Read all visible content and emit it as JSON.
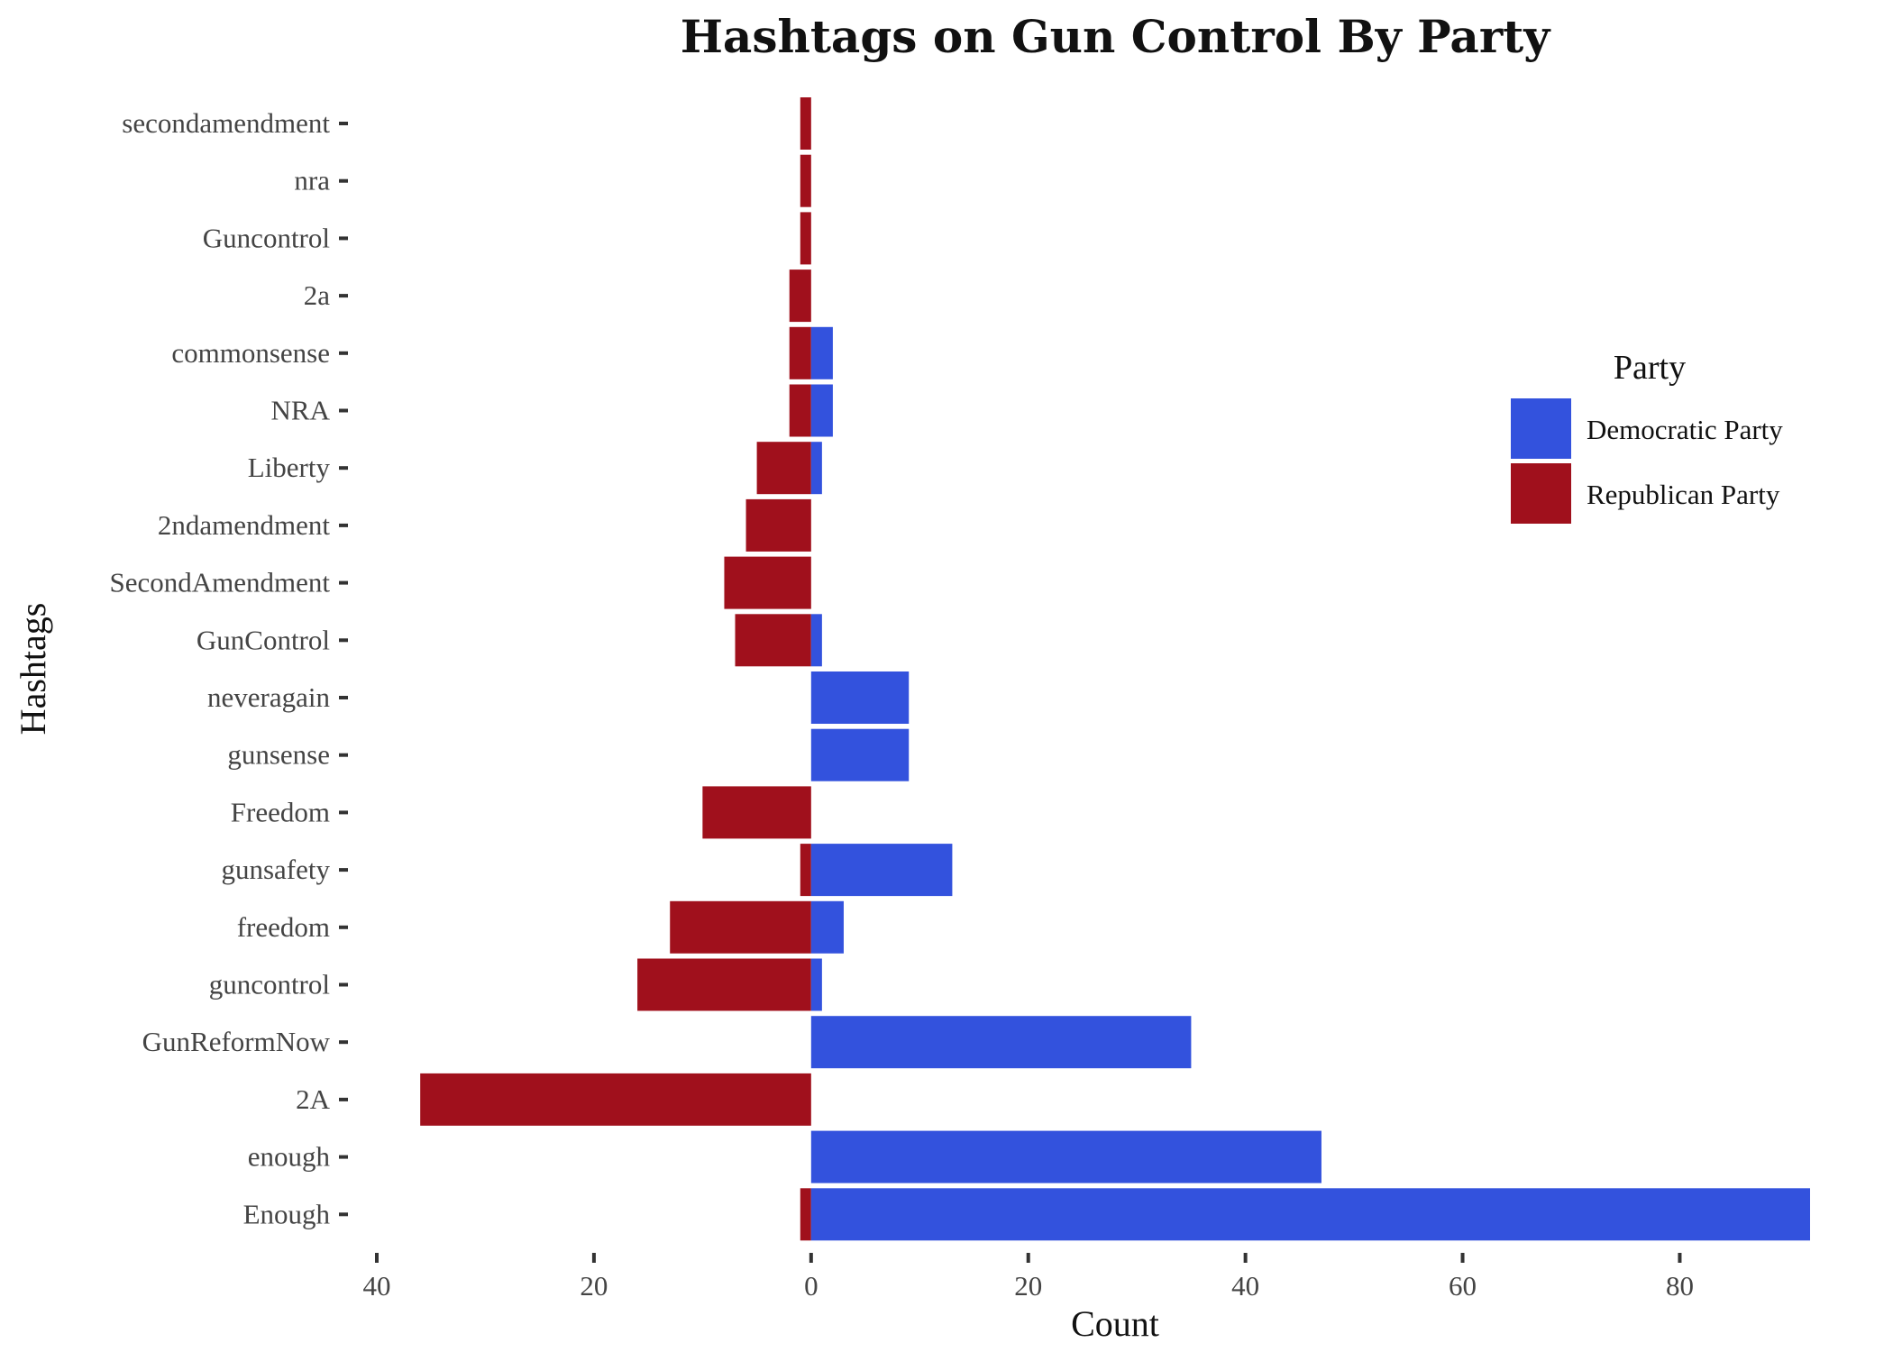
{
  "chart_data": {
    "type": "bar",
    "orientation": "horizontal",
    "title": "Hashtags on Gun Control By Party",
    "xlabel": "Count",
    "ylabel": "Hashtags",
    "xlim": [
      -40,
      92
    ],
    "x_ticks": [
      -40,
      -20,
      0,
      20,
      40,
      60,
      80
    ],
    "x_tick_labels": [
      "40",
      "20",
      "0",
      "20",
      "40",
      "60",
      "80"
    ],
    "grid": false,
    "legend": {
      "title": "Party",
      "position": "right"
    },
    "categories": [
      "secondamendment",
      "nra",
      "Guncontrol",
      "2a",
      "commonsense",
      "NRA",
      "Liberty",
      "2ndamendment",
      "SecondAmendment",
      "GunControl",
      "neveragain",
      "gunsense",
      "Freedom",
      "gunsafety",
      "freedom",
      "guncontrol",
      "GunReformNow",
      "2A",
      "enough",
      "Enough"
    ],
    "series": [
      {
        "name": "Democratic Party",
        "color": "#3352dd",
        "values": [
          0,
          0,
          0,
          0,
          2,
          2,
          1,
          0,
          0,
          1,
          9,
          9,
          0,
          13,
          3,
          1,
          35,
          0,
          47,
          92
        ]
      },
      {
        "name": "Republican Party",
        "color": "#a0101c",
        "values": [
          1,
          1,
          1,
          2,
          2,
          2,
          5,
          6,
          8,
          7,
          0,
          0,
          10,
          1,
          13,
          16,
          0,
          36,
          0,
          1
        ]
      }
    ]
  }
}
